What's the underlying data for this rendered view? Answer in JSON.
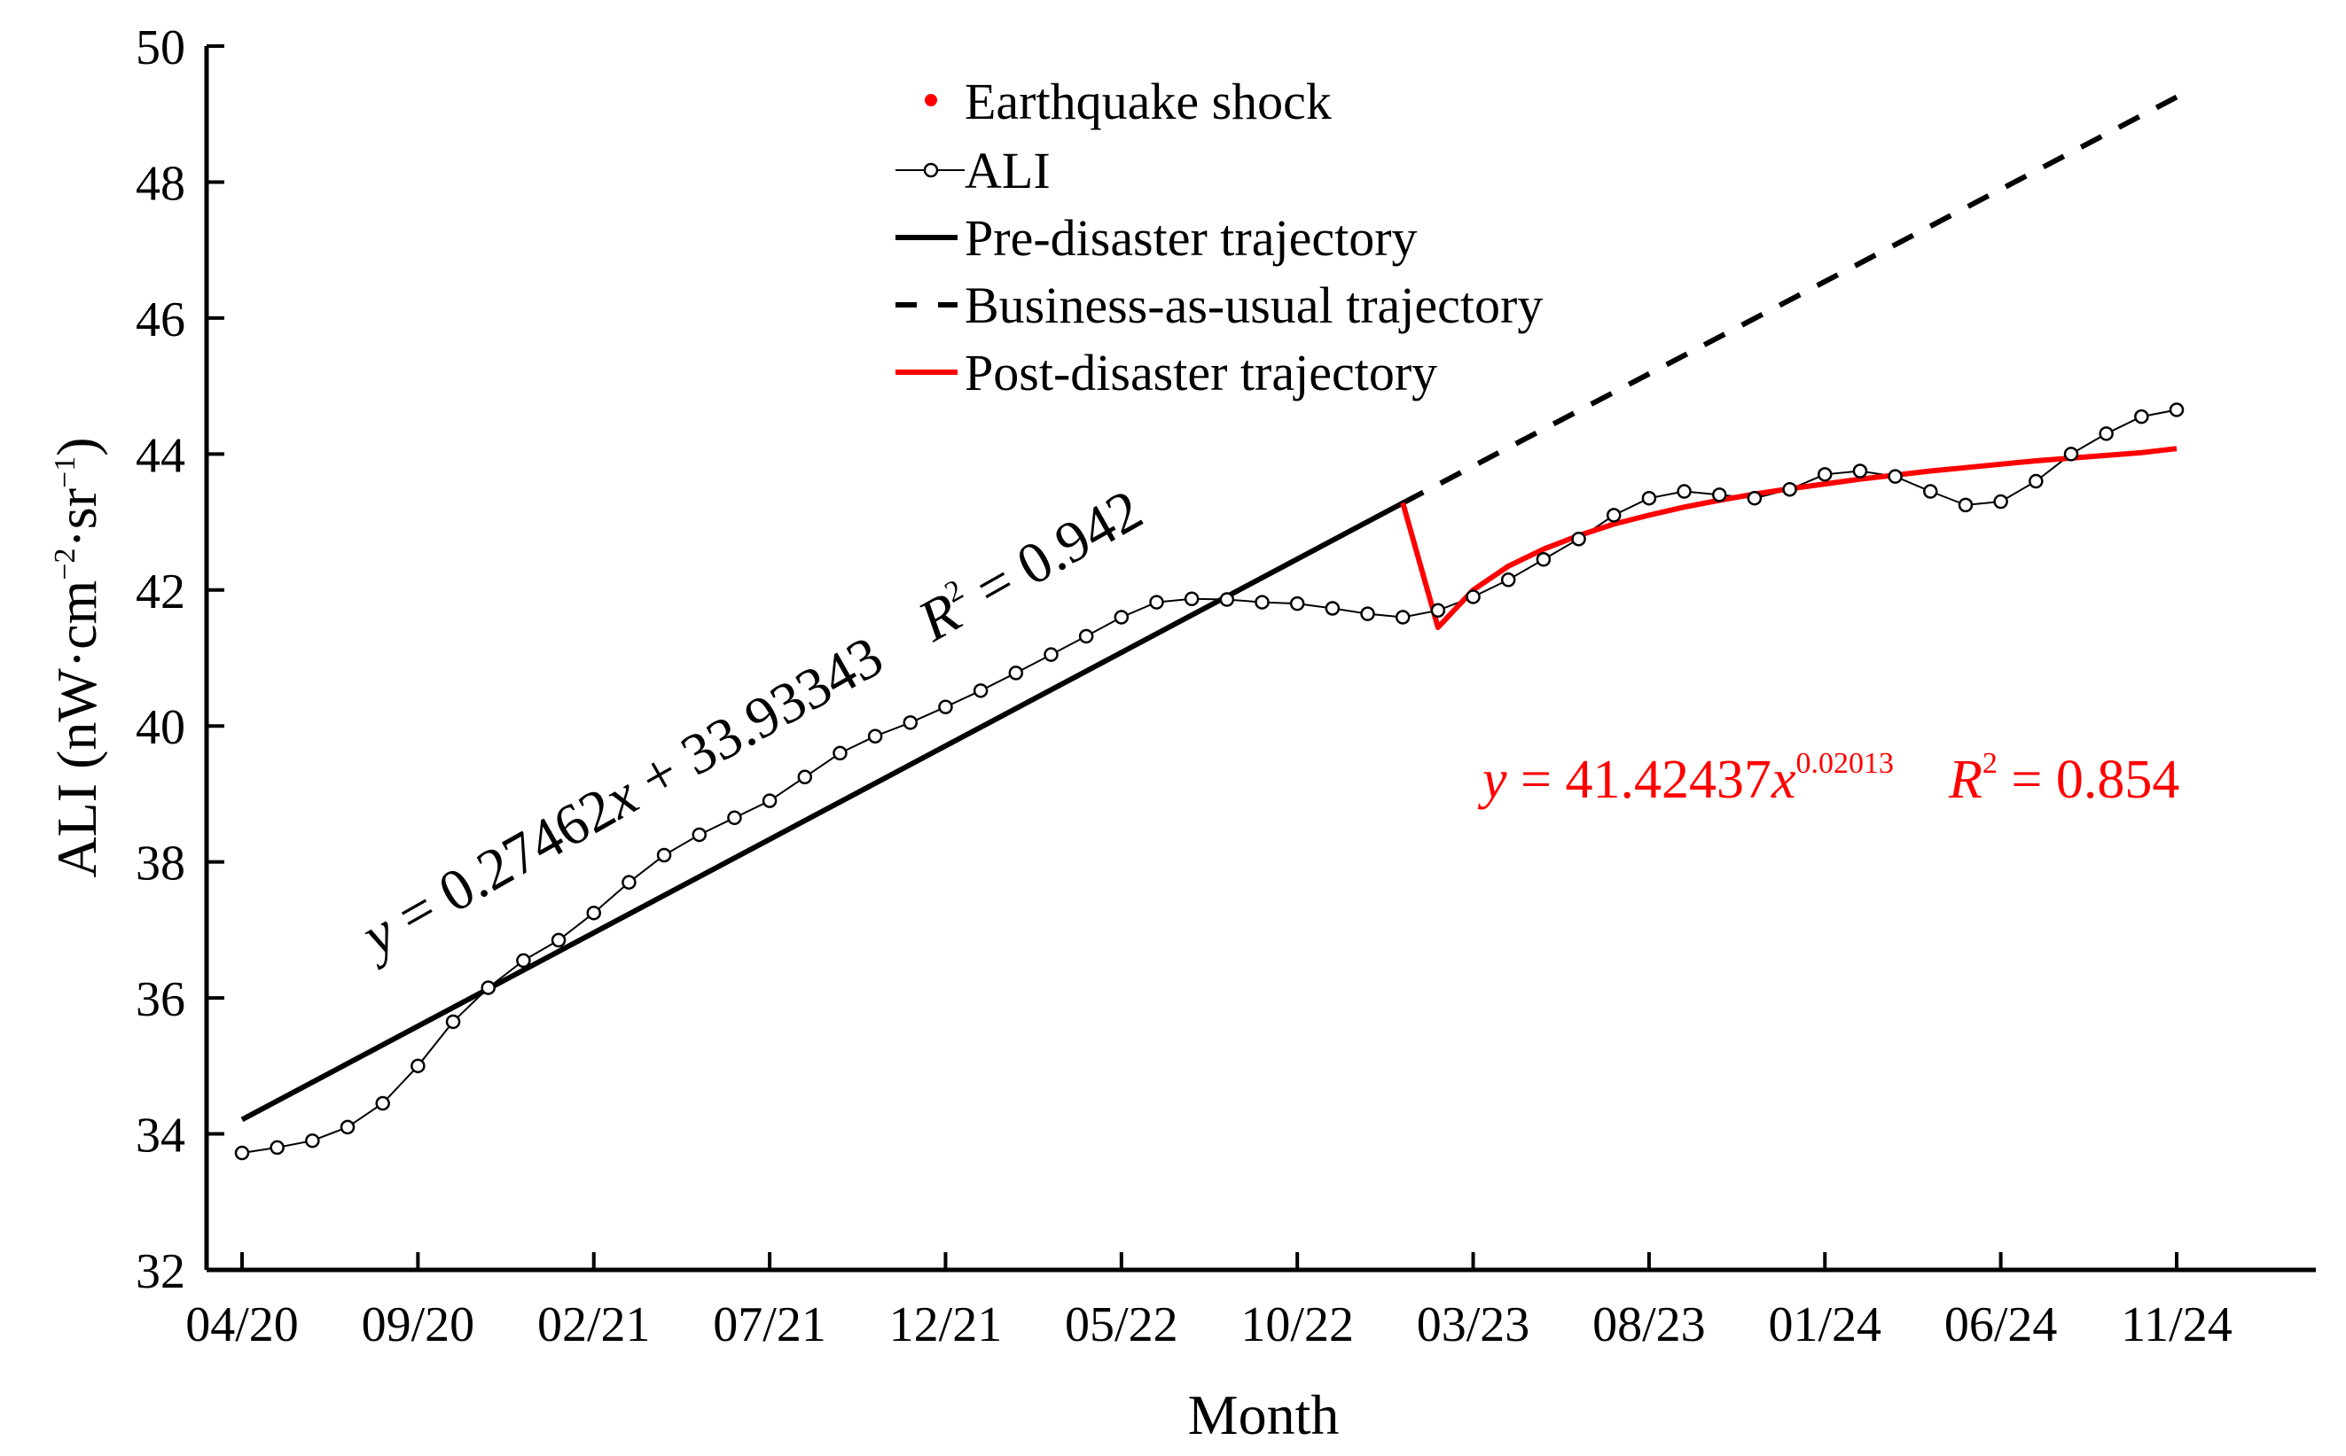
{
  "chart_data": {
    "type": "line",
    "xlabel": "Month",
    "ylabel": "ALI (nW·cm−2·sr−1)",
    "ylabel_parts": {
      "pre": "ALI (nW·cm",
      "exp1": "−2",
      "mid": "·sr",
      "exp2": "−1",
      "post": ")"
    },
    "ylim": [
      32,
      50
    ],
    "xlim": [
      -1,
      58
    ],
    "y_ticks": [
      32,
      34,
      36,
      38,
      40,
      42,
      44,
      46,
      48,
      50
    ],
    "x_tick_positions": [
      0,
      5,
      10,
      15,
      20,
      25,
      30,
      35,
      40,
      45,
      50,
      55
    ],
    "x_tick_labels": [
      "04/20",
      "09/20",
      "02/21",
      "07/21",
      "12/21",
      "05/22",
      "10/22",
      "03/23",
      "08/23",
      "01/24",
      "06/24",
      "11/24"
    ],
    "legend": {
      "placement": "top-center",
      "entries": [
        "Earthquake shock",
        "ALI",
        "Pre-disaster trajectory",
        "Business-as-usual trajectory",
        "Post-disaster trajectory"
      ]
    },
    "series": [
      {
        "name": "ALI",
        "style": "black thin line with hollow circle markers",
        "x": [
          0,
          1,
          2,
          3,
          4,
          5,
          6,
          7,
          8,
          9,
          10,
          11,
          12,
          13,
          14,
          15,
          16,
          17,
          18,
          19,
          20,
          21,
          22,
          23,
          24,
          25,
          26,
          27,
          28,
          29,
          30,
          31,
          32,
          33,
          34,
          35,
          36,
          37,
          38,
          39,
          40,
          41,
          42,
          43,
          44,
          45,
          46,
          47,
          48,
          49,
          50,
          51,
          52,
          53,
          54,
          55
        ],
        "values": [
          33.72,
          33.8,
          33.9,
          34.1,
          34.45,
          35.0,
          35.65,
          36.15,
          36.55,
          36.85,
          37.25,
          37.7,
          38.1,
          38.4,
          38.65,
          38.9,
          39.25,
          39.6,
          39.85,
          40.05,
          40.28,
          40.52,
          40.78,
          41.05,
          41.32,
          41.6,
          41.82,
          41.87,
          41.86,
          41.82,
          41.8,
          41.73,
          41.65,
          41.6,
          41.7,
          41.9,
          42.15,
          42.45,
          42.75,
          43.1,
          43.35,
          43.45,
          43.4,
          43.35,
          43.48,
          43.7,
          43.75,
          43.67,
          43.45,
          43.25,
          43.3,
          43.6,
          44.0,
          44.3,
          44.55,
          44.65
        ]
      },
      {
        "name": "Pre-disaster trajectory",
        "style": "solid black",
        "x": [
          0,
          33
        ],
        "values": [
          34.21,
          43.28
        ]
      },
      {
        "name": "Business-as-usual trajectory",
        "style": "dashed black",
        "x": [
          33,
          55
        ],
        "values": [
          43.28,
          49.25
        ]
      },
      {
        "name": "Post-disaster trajectory",
        "style": "solid red",
        "x": [
          33,
          34,
          35,
          36,
          37,
          38,
          39,
          40,
          41,
          42,
          43,
          44,
          45,
          46,
          47,
          48,
          49,
          50,
          51,
          52,
          53,
          54,
          55
        ],
        "values": [
          43.28,
          41.45,
          42.0,
          42.35,
          42.6,
          42.8,
          42.97,
          43.1,
          43.22,
          43.32,
          43.41,
          43.49,
          43.56,
          43.63,
          43.69,
          43.75,
          43.8,
          43.85,
          43.9,
          43.94,
          43.98,
          44.02,
          44.08
        ]
      }
    ],
    "annotations": {
      "pre_equation": {
        "y_var": "y",
        "rhs": " = 0.27462",
        "x_var": "x",
        "tail": " + 33.93343",
        "r_var": "R",
        "r_exp": "2",
        "r_tail": " = 0.942"
      },
      "post_equation": {
        "y_var": "y",
        "rhs": " = 41.42437",
        "x_var": "x",
        "x_exp": "0.02013",
        "r_var": "R",
        "r_exp": "2",
        "r_tail": " = 0.854"
      }
    },
    "colors": {
      "black": "#000000",
      "red": "#ff0000"
    }
  }
}
